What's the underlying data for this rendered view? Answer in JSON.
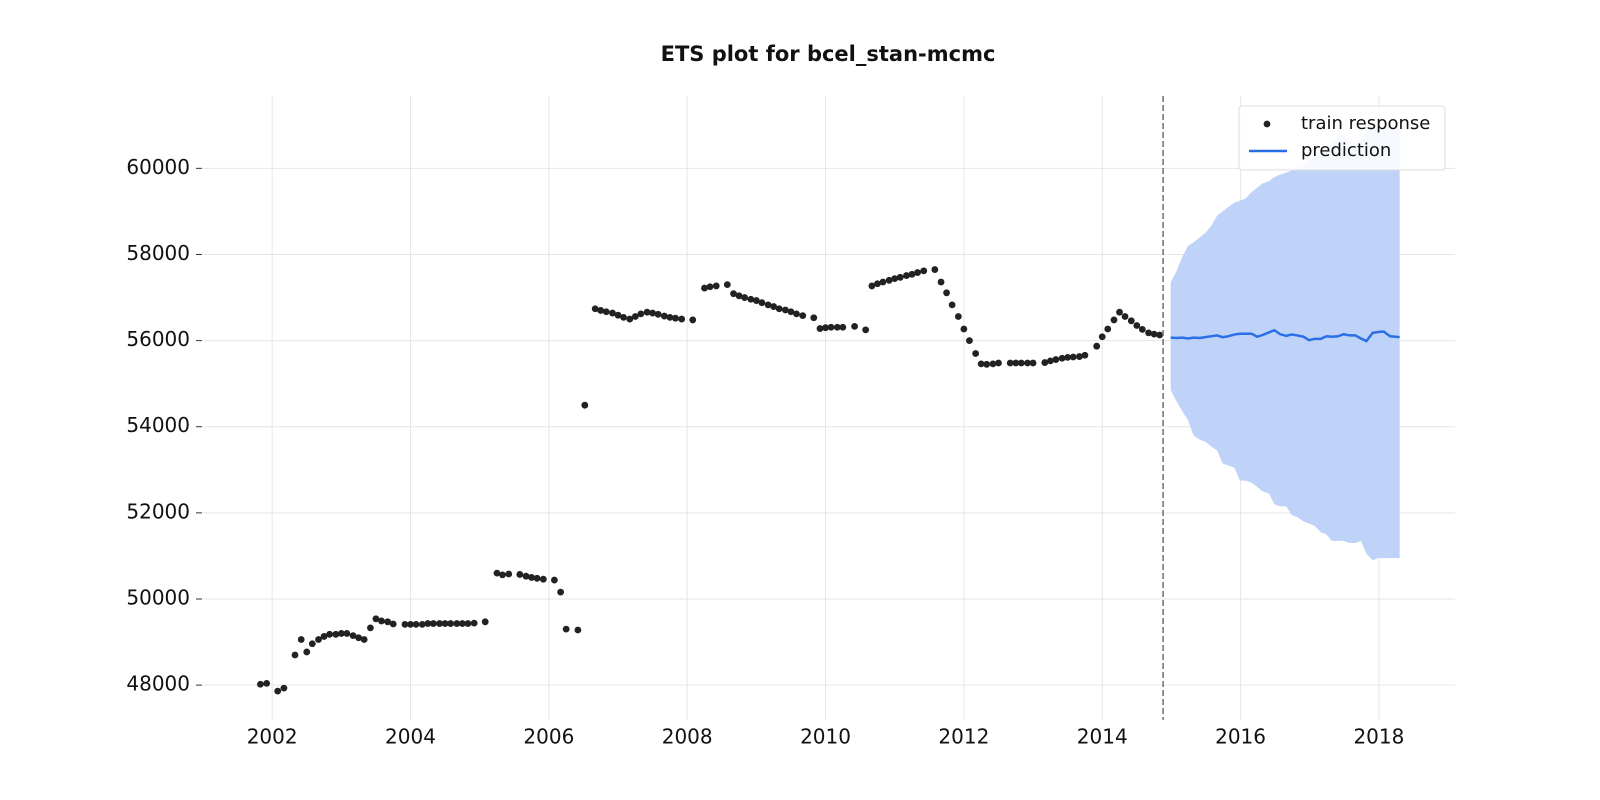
{
  "chart_data": {
    "type": "scatter",
    "title": "ETS plot for bcel_stan-mcmc",
    "xlim": [
      2001.0,
      2019.1
    ],
    "ylim": [
      47190,
      61680
    ],
    "xticks": [
      2002,
      2004,
      2006,
      2008,
      2010,
      2012,
      2014,
      2016,
      2018
    ],
    "yticks": [
      48000,
      50000,
      52000,
      54000,
      56000,
      58000,
      60000
    ],
    "grid": true,
    "legend": "upper right",
    "cutoff": 2014.88,
    "cutoff_color": "#777777",
    "series": [
      {
        "name": "train response",
        "type": "scatter",
        "color": "#222222",
        "x": [
          2001.83,
          2001.92,
          2002.08,
          2002.17,
          2002.33,
          2002.42,
          2002.5,
          2002.58,
          2002.67,
          2002.75,
          2002.83,
          2002.92,
          2003.0,
          2003.08,
          2003.17,
          2003.25,
          2003.33,
          2003.42,
          2003.5,
          2003.58,
          2003.67,
          2003.75,
          2003.92,
          2004.0,
          2004.08,
          2004.17,
          2004.25,
          2004.33,
          2004.42,
          2004.5,
          2004.58,
          2004.67,
          2004.75,
          2004.83,
          2004.92,
          2005.08,
          2005.25,
          2005.33,
          2005.42,
          2005.58,
          2005.67,
          2005.75,
          2005.83,
          2005.92,
          2006.08,
          2006.17,
          2006.25,
          2006.42,
          2006.52,
          2006.67,
          2006.75,
          2006.83,
          2006.92,
          2007.0,
          2007.08,
          2007.17,
          2007.25,
          2007.33,
          2007.42,
          2007.5,
          2007.58,
          2007.67,
          2007.75,
          2007.83,
          2007.92,
          2008.08,
          2008.25,
          2008.33,
          2008.42,
          2008.58,
          2008.67,
          2008.75,
          2008.83,
          2008.92,
          2009.0,
          2009.08,
          2009.17,
          2009.25,
          2009.33,
          2009.42,
          2009.5,
          2009.58,
          2009.67,
          2009.83,
          2009.92,
          2010.0,
          2010.08,
          2010.17,
          2010.25,
          2010.42,
          2010.58,
          2010.67,
          2010.75,
          2010.83,
          2010.92,
          2011.0,
          2011.08,
          2011.17,
          2011.25,
          2011.33,
          2011.42,
          2011.58,
          2011.67,
          2011.75,
          2011.83,
          2011.92,
          2012.0,
          2012.08,
          2012.17,
          2012.25,
          2012.33,
          2012.42,
          2012.5,
          2012.67,
          2012.75,
          2012.83,
          2012.92,
          2013.0,
          2013.17,
          2013.25,
          2013.33,
          2013.42,
          2013.5,
          2013.58,
          2013.67,
          2013.75,
          2013.92,
          2014.0,
          2014.08,
          2014.17,
          2014.25,
          2014.33,
          2014.42,
          2014.5,
          2014.58,
          2014.67,
          2014.75,
          2014.83
        ],
        "values": [
          48020,
          48040,
          47860,
          47930,
          48700,
          49060,
          48770,
          48960,
          49060,
          49130,
          49180,
          49180,
          49200,
          49200,
          49150,
          49100,
          49060,
          49330,
          49540,
          49490,
          49470,
          49420,
          49410,
          49410,
          49410,
          49410,
          49430,
          49430,
          49430,
          49430,
          49430,
          49430,
          49430,
          49430,
          49440,
          49470,
          50600,
          50560,
          50580,
          50570,
          50530,
          50500,
          50480,
          50460,
          50440,
          50160,
          49300,
          49280,
          54500,
          56740,
          56700,
          56670,
          56640,
          56590,
          56540,
          56500,
          56560,
          56620,
          56660,
          56640,
          56610,
          56570,
          56540,
          56520,
          56500,
          56480,
          57220,
          57250,
          57270,
          57300,
          57090,
          57040,
          57000,
          56960,
          56930,
          56880,
          56830,
          56790,
          56740,
          56710,
          56670,
          56620,
          56580,
          56530,
          56280,
          56300,
          56310,
          56310,
          56310,
          56330,
          56250,
          57270,
          57320,
          57360,
          57400,
          57440,
          57470,
          57510,
          57540,
          57580,
          57620,
          57650,
          57360,
          57110,
          56830,
          56560,
          56270,
          56000,
          55700,
          55460,
          55450,
          55460,
          55480,
          55480,
          55480,
          55480,
          55480,
          55480,
          55490,
          55530,
          55560,
          55590,
          55610,
          55620,
          55630,
          55660,
          55870,
          56090,
          56270,
          56480,
          56660,
          56560,
          56460,
          56350,
          56260,
          56180,
          56150,
          56130
        ]
      },
      {
        "name": "prediction",
        "type": "line",
        "color": "#2a6fe6",
        "band_color": "#bfd3f8",
        "x": [
          2014.99,
          2015.07,
          2015.16,
          2015.24,
          2015.32,
          2015.41,
          2015.49,
          2015.57,
          2015.66,
          2015.74,
          2015.82,
          2015.91,
          2015.99,
          2016.07,
          2016.16,
          2016.24,
          2016.32,
          2016.41,
          2016.49,
          2016.57,
          2016.66,
          2016.74,
          2016.82,
          2016.91,
          2016.99,
          2017.07,
          2017.16,
          2017.24,
          2017.32,
          2017.41,
          2017.49,
          2017.57,
          2017.66,
          2017.74,
          2017.82,
          2017.91,
          2017.99,
          2018.07,
          2018.16,
          2018.3
        ],
        "values": [
          56070,
          56060,
          56070,
          56050,
          56070,
          56060,
          56080,
          56100,
          56120,
          56080,
          56100,
          56140,
          56160,
          56160,
          56160,
          56090,
          56130,
          56190,
          56240,
          56150,
          56110,
          56140,
          56120,
          56090,
          56010,
          56040,
          56040,
          56100,
          56090,
          56100,
          56150,
          56120,
          56120,
          56050,
          55990,
          56180,
          56200,
          56210,
          56100,
          56080
        ],
        "lower": [
          54850,
          54600,
          54350,
          54150,
          53800,
          53700,
          53650,
          53550,
          53450,
          53150,
          53100,
          53050,
          52750,
          52750,
          52700,
          52600,
          52500,
          52450,
          52200,
          52150,
          52150,
          51950,
          51900,
          51800,
          51750,
          51700,
          51550,
          51500,
          51350,
          51350,
          51350,
          51300,
          51300,
          51350,
          51050,
          50900,
          50950,
          50950,
          50950,
          50950
        ],
        "upper": [
          57360,
          57600,
          57950,
          58200,
          58280,
          58400,
          58500,
          58650,
          58900,
          59000,
          59100,
          59200,
          59250,
          59300,
          59450,
          59550,
          59650,
          59700,
          59800,
          59850,
          59900,
          59950,
          60000,
          60050,
          60150,
          60250,
          60350,
          60500,
          60600,
          60800,
          60750,
          60650,
          60550,
          60700,
          60850,
          60900,
          60950,
          60950,
          60950,
          60950
        ]
      }
    ]
  }
}
